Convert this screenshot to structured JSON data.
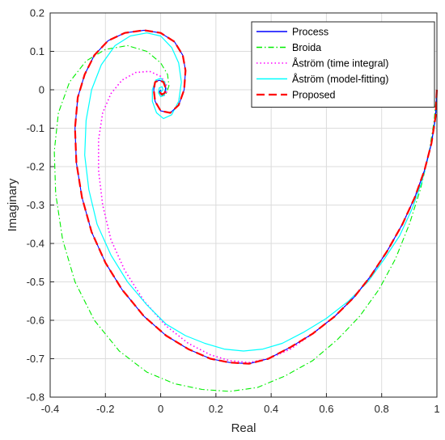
{
  "chart_data": {
    "type": "line",
    "title": "",
    "xlabel": "Real",
    "ylabel": "Imaginary",
    "xlim": [
      -0.4,
      1.0
    ],
    "ylim": [
      -0.8,
      0.2
    ],
    "xticks": [
      "-0.4",
      "-0.2",
      "0",
      "0.2",
      "0.4",
      "0.6",
      "0.8",
      "1"
    ],
    "yticks": [
      "0.2",
      "0.1",
      "0",
      "-0.1",
      "-0.2",
      "-0.3",
      "-0.4",
      "-0.5",
      "-0.6",
      "-0.7",
      "-0.8"
    ],
    "grid": true,
    "legend_position": "top-right",
    "series": [
      {
        "name": "Process",
        "color": "#0000ff",
        "style": "solid",
        "points": [
          [
            1.0,
            0.0
          ],
          [
            0.995,
            -0.07
          ],
          [
            0.98,
            -0.14
          ],
          [
            0.955,
            -0.21
          ],
          [
            0.92,
            -0.28
          ],
          [
            0.875,
            -0.35
          ],
          [
            0.82,
            -0.42
          ],
          [
            0.76,
            -0.485
          ],
          [
            0.7,
            -0.54
          ],
          [
            0.63,
            -0.59
          ],
          [
            0.55,
            -0.635
          ],
          [
            0.47,
            -0.67
          ],
          [
            0.39,
            -0.7
          ],
          [
            0.32,
            -0.713
          ],
          [
            0.25,
            -0.71
          ],
          [
            0.18,
            -0.7
          ],
          [
            0.1,
            -0.675
          ],
          [
            0.02,
            -0.64
          ],
          [
            -0.06,
            -0.59
          ],
          [
            -0.14,
            -0.52
          ],
          [
            -0.2,
            -0.45
          ],
          [
            -0.25,
            -0.37
          ],
          [
            -0.285,
            -0.28
          ],
          [
            -0.305,
            -0.19
          ],
          [
            -0.31,
            -0.1
          ],
          [
            -0.3,
            -0.02
          ],
          [
            -0.275,
            0.04
          ],
          [
            -0.24,
            0.09
          ],
          [
            -0.19,
            0.128
          ],
          [
            -0.13,
            0.148
          ],
          [
            -0.06,
            0.155
          ],
          [
            0.0,
            0.148
          ],
          [
            0.05,
            0.125
          ],
          [
            0.08,
            0.09
          ],
          [
            0.09,
            0.05
          ],
          [
            0.085,
            0.0
          ],
          [
            0.065,
            -0.04
          ],
          [
            0.035,
            -0.06
          ],
          [
            0.0,
            -0.055
          ],
          [
            -0.02,
            -0.03
          ],
          [
            -0.025,
            0.0
          ],
          [
            -0.02,
            0.02
          ],
          [
            -0.005,
            0.025
          ],
          [
            0.01,
            0.02
          ],
          [
            0.018,
            0.005
          ],
          [
            0.015,
            -0.008
          ],
          [
            0.005,
            -0.012
          ],
          [
            -0.004,
            -0.006
          ],
          [
            0.0,
            0.0
          ]
        ]
      },
      {
        "name": "Broida",
        "color": "#00ee00",
        "style": "dashdot",
        "points": [
          [
            1.0,
            0.0
          ],
          [
            0.99,
            -0.08
          ],
          [
            0.97,
            -0.17
          ],
          [
            0.94,
            -0.26
          ],
          [
            0.9,
            -0.35
          ],
          [
            0.85,
            -0.44
          ],
          [
            0.79,
            -0.52
          ],
          [
            0.72,
            -0.59
          ],
          [
            0.64,
            -0.65
          ],
          [
            0.55,
            -0.705
          ],
          [
            0.45,
            -0.745
          ],
          [
            0.35,
            -0.775
          ],
          [
            0.25,
            -0.785
          ],
          [
            0.15,
            -0.78
          ],
          [
            0.05,
            -0.765
          ],
          [
            -0.05,
            -0.735
          ],
          [
            -0.15,
            -0.68
          ],
          [
            -0.24,
            -0.6
          ],
          [
            -0.31,
            -0.5
          ],
          [
            -0.355,
            -0.39
          ],
          [
            -0.38,
            -0.27
          ],
          [
            -0.385,
            -0.16
          ],
          [
            -0.37,
            -0.06
          ],
          [
            -0.33,
            0.02
          ],
          [
            -0.27,
            0.075
          ],
          [
            -0.2,
            0.105
          ],
          [
            -0.12,
            0.115
          ],
          [
            -0.05,
            0.1
          ],
          [
            0.0,
            0.07
          ],
          [
            0.025,
            0.04
          ],
          [
            0.03,
            0.01
          ],
          [
            0.02,
            -0.01
          ],
          [
            0.005,
            -0.015
          ],
          [
            -0.005,
            -0.008
          ],
          [
            0.0,
            0.0
          ]
        ]
      },
      {
        "name": "Åström (time integral)",
        "color": "#ff00ff",
        "style": "dotted",
        "points": [
          [
            1.0,
            0.0
          ],
          [
            0.995,
            -0.07
          ],
          [
            0.98,
            -0.14
          ],
          [
            0.955,
            -0.21
          ],
          [
            0.92,
            -0.28
          ],
          [
            0.875,
            -0.35
          ],
          [
            0.82,
            -0.42
          ],
          [
            0.76,
            -0.485
          ],
          [
            0.7,
            -0.54
          ],
          [
            0.63,
            -0.59
          ],
          [
            0.55,
            -0.635
          ],
          [
            0.47,
            -0.675
          ],
          [
            0.39,
            -0.7
          ],
          [
            0.32,
            -0.71
          ],
          [
            0.25,
            -0.705
          ],
          [
            0.18,
            -0.69
          ],
          [
            0.1,
            -0.66
          ],
          [
            0.02,
            -0.615
          ],
          [
            -0.06,
            -0.55
          ],
          [
            -0.13,
            -0.47
          ],
          [
            -0.18,
            -0.39
          ],
          [
            -0.21,
            -0.3
          ],
          [
            -0.225,
            -0.21
          ],
          [
            -0.225,
            -0.13
          ],
          [
            -0.21,
            -0.06
          ],
          [
            -0.18,
            -0.01
          ],
          [
            -0.14,
            0.025
          ],
          [
            -0.09,
            0.045
          ],
          [
            -0.04,
            0.048
          ],
          [
            0.0,
            0.035
          ],
          [
            0.02,
            0.015
          ],
          [
            0.022,
            -0.005
          ],
          [
            0.012,
            -0.015
          ],
          [
            0.0,
            -0.012
          ],
          [
            -0.005,
            -0.003
          ],
          [
            0.0,
            0.0
          ]
        ]
      },
      {
        "name": "Åström (model-fitting)",
        "color": "#00ffff",
        "style": "solid",
        "points": [
          [
            1.0,
            -0.03
          ],
          [
            0.99,
            -0.1
          ],
          [
            0.97,
            -0.17
          ],
          [
            0.945,
            -0.24
          ],
          [
            0.91,
            -0.31
          ],
          [
            0.865,
            -0.38
          ],
          [
            0.81,
            -0.44
          ],
          [
            0.75,
            -0.5
          ],
          [
            0.68,
            -0.55
          ],
          [
            0.6,
            -0.595
          ],
          [
            0.52,
            -0.63
          ],
          [
            0.44,
            -0.66
          ],
          [
            0.37,
            -0.675
          ],
          [
            0.3,
            -0.68
          ],
          [
            0.23,
            -0.675
          ],
          [
            0.16,
            -0.66
          ],
          [
            0.09,
            -0.64
          ],
          [
            0.02,
            -0.61
          ],
          [
            -0.05,
            -0.56
          ],
          [
            -0.12,
            -0.5
          ],
          [
            -0.18,
            -0.43
          ],
          [
            -0.23,
            -0.35
          ],
          [
            -0.26,
            -0.26
          ],
          [
            -0.275,
            -0.17
          ],
          [
            -0.27,
            -0.08
          ],
          [
            -0.25,
            0.0
          ],
          [
            -0.215,
            0.065
          ],
          [
            -0.165,
            0.115
          ],
          [
            -0.11,
            0.14
          ],
          [
            -0.05,
            0.148
          ],
          [
            0.0,
            0.14
          ],
          [
            0.04,
            0.11
          ],
          [
            0.065,
            0.07
          ],
          [
            0.075,
            0.02
          ],
          [
            0.065,
            -0.03
          ],
          [
            0.04,
            -0.065
          ],
          [
            0.01,
            -0.075
          ],
          [
            -0.015,
            -0.06
          ],
          [
            -0.03,
            -0.03
          ],
          [
            -0.03,
            0.0
          ],
          [
            -0.018,
            0.025
          ],
          [
            0.0,
            0.03
          ],
          [
            0.015,
            0.02
          ],
          [
            0.02,
            0.0
          ],
          [
            0.012,
            -0.015
          ],
          [
            0.0,
            -0.018
          ],
          [
            -0.008,
            -0.008
          ],
          [
            -0.005,
            0.005
          ],
          [
            0.005,
            0.008
          ],
          [
            0.008,
            0.0
          ],
          [
            0.002,
            -0.005
          ],
          [
            0.0,
            0.0
          ]
        ]
      },
      {
        "name": "Proposed",
        "color": "#ff0000",
        "style": "dashed",
        "points": [
          [
            1.0,
            0.0
          ],
          [
            0.995,
            -0.07
          ],
          [
            0.98,
            -0.14
          ],
          [
            0.955,
            -0.21
          ],
          [
            0.92,
            -0.28
          ],
          [
            0.875,
            -0.35
          ],
          [
            0.82,
            -0.42
          ],
          [
            0.76,
            -0.485
          ],
          [
            0.7,
            -0.54
          ],
          [
            0.63,
            -0.59
          ],
          [
            0.55,
            -0.635
          ],
          [
            0.47,
            -0.67
          ],
          [
            0.39,
            -0.7
          ],
          [
            0.32,
            -0.713
          ],
          [
            0.25,
            -0.71
          ],
          [
            0.18,
            -0.7
          ],
          [
            0.1,
            -0.675
          ],
          [
            0.02,
            -0.64
          ],
          [
            -0.06,
            -0.59
          ],
          [
            -0.14,
            -0.52
          ],
          [
            -0.2,
            -0.45
          ],
          [
            -0.25,
            -0.37
          ],
          [
            -0.285,
            -0.28
          ],
          [
            -0.305,
            -0.19
          ],
          [
            -0.31,
            -0.1
          ],
          [
            -0.3,
            -0.02
          ],
          [
            -0.275,
            0.04
          ],
          [
            -0.24,
            0.09
          ],
          [
            -0.19,
            0.128
          ],
          [
            -0.13,
            0.148
          ],
          [
            -0.06,
            0.155
          ],
          [
            0.0,
            0.148
          ],
          [
            0.05,
            0.125
          ],
          [
            0.08,
            0.09
          ],
          [
            0.09,
            0.05
          ],
          [
            0.085,
            0.0
          ],
          [
            0.065,
            -0.04
          ],
          [
            0.035,
            -0.06
          ],
          [
            0.0,
            -0.055
          ],
          [
            -0.02,
            -0.03
          ],
          [
            -0.025,
            0.0
          ],
          [
            -0.02,
            0.02
          ],
          [
            -0.005,
            0.025
          ],
          [
            0.01,
            0.02
          ],
          [
            0.018,
            0.005
          ],
          [
            0.015,
            -0.008
          ],
          [
            0.005,
            -0.012
          ],
          [
            -0.004,
            -0.006
          ],
          [
            0.0,
            0.0
          ]
        ]
      }
    ]
  }
}
